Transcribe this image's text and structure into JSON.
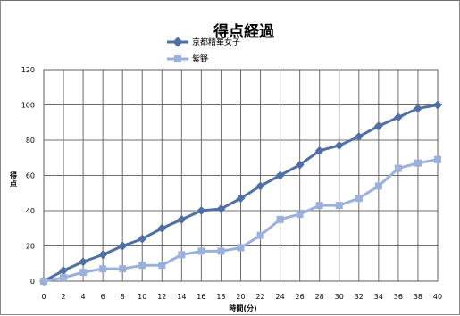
{
  "chart_data": {
    "type": "line",
    "title": "得点経過",
    "xlabel": "時間(分)",
    "ylabel": "得点",
    "x": [
      0,
      2,
      4,
      6,
      8,
      10,
      12,
      14,
      16,
      18,
      20,
      22,
      24,
      26,
      28,
      30,
      32,
      34,
      36,
      38,
      40
    ],
    "xticks": [
      "0",
      "2",
      "4",
      "6",
      "8",
      "10",
      "12",
      "14",
      "16",
      "18",
      "20",
      "22",
      "24",
      "26",
      "28",
      "30",
      "32",
      "34",
      "36",
      "38",
      "40"
    ],
    "yticks": [
      "0",
      "20",
      "40",
      "60",
      "80",
      "100",
      "120"
    ],
    "xlim": [
      0,
      40
    ],
    "ylim": [
      0,
      120
    ],
    "grid": true,
    "legend": "top-center",
    "series": [
      {
        "name": "京都精華女子",
        "color": "#4F6FA5",
        "marker": "diamond",
        "values": [
          0,
          6,
          11,
          15,
          20,
          24,
          30,
          35,
          40,
          41,
          47,
          54,
          60,
          66,
          74,
          77,
          82,
          88,
          93,
          98,
          100
        ]
      },
      {
        "name": "紫野",
        "color": "#9BB0DC",
        "marker": "square",
        "values": [
          0,
          2,
          5,
          7,
          7,
          9,
          9,
          15,
          17,
          17,
          19,
          26,
          35,
          38,
          43,
          43,
          47,
          54,
          64,
          67,
          69
        ]
      }
    ]
  }
}
